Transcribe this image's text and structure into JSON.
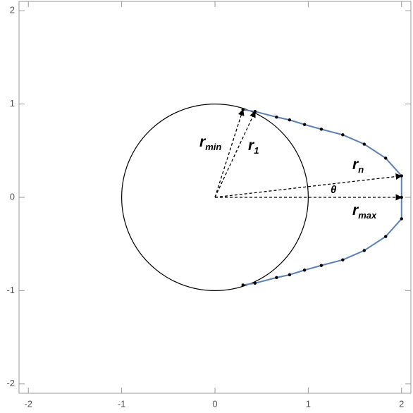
{
  "chart_data": {
    "type": "line",
    "xlim": [
      -2.1,
      2.1
    ],
    "ylim": [
      -2.1,
      2.1
    ],
    "xticks": [
      -2,
      -1,
      0,
      1,
      2
    ],
    "yticks": [
      -2,
      -1,
      0,
      1,
      2
    ],
    "color": "#5e81b5",
    "x": [
      0.3,
      0.43,
      0.66,
      0.8,
      0.96,
      1.14,
      1.37,
      1.6,
      1.83,
      2.0,
      2.0,
      2.0,
      1.83,
      1.6,
      1.37,
      1.14,
      0.96,
      0.8,
      0.66,
      0.43,
      0.3
    ],
    "values": [
      0.94,
      0.92,
      0.86,
      0.83,
      0.78,
      0.73,
      0.67,
      0.57,
      0.42,
      0.23,
      0,
      -0.23,
      -0.42,
      -0.57,
      -0.67,
      -0.73,
      -0.78,
      -0.83,
      -0.86,
      -0.92,
      -0.94
    ],
    "circle": {
      "center_x": 0,
      "center_y": 0,
      "radius": 1
    },
    "annotations": [
      {
        "label": "r",
        "subscript": "min",
        "to_x": 0.3,
        "to_y": 0.94
      },
      {
        "label": "r",
        "subscript": "1",
        "to_x": 0.43,
        "to_y": 0.92
      },
      {
        "label": "r",
        "subscript": "n",
        "to_x": 2.0,
        "to_y": 0.23
      },
      {
        "label": "r",
        "subscript": "max",
        "to_x": 2.0,
        "to_y": 0
      }
    ],
    "angle_label": "θ"
  }
}
